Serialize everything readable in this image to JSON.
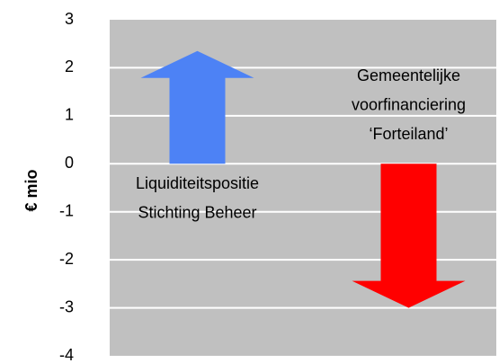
{
  "chart_data": {
    "type": "arrow",
    "y_label": "€ mio",
    "categories": [
      [
        "Liquiditeitspositie",
        "Stichting Beheer"
      ],
      [
        "Gemeentelijke",
        "voorfinanciering",
        "‘Forteiland’"
      ]
    ],
    "values": [
      2.35,
      -3
    ],
    "colors": [
      "#4d82f5",
      "#ff0000"
    ],
    "ylim": [
      -4,
      3
    ],
    "yticks": [
      -4,
      -3,
      -2,
      -1,
      0,
      1,
      2,
      3
    ],
    "grid": true,
    "background": "#c0c0c0"
  }
}
